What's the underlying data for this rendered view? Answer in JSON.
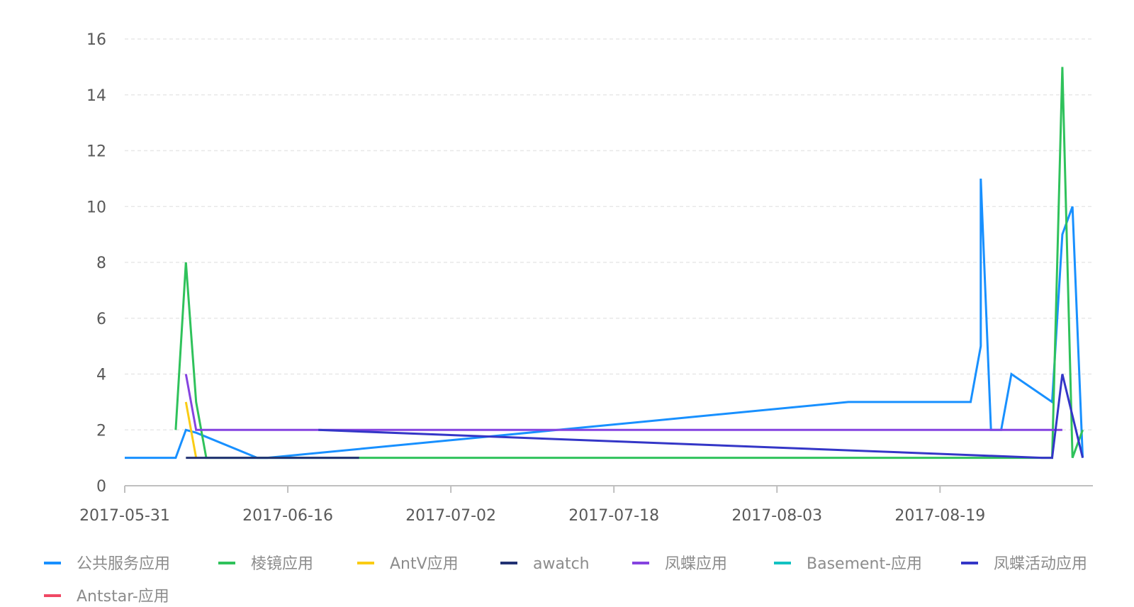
{
  "chart_data": {
    "type": "line",
    "title": "",
    "xlabel": "",
    "ylabel": "",
    "ylim": [
      0,
      16
    ],
    "xlim": [
      "2017-05-31",
      "2017-09-03"
    ],
    "y_ticks": [
      "0",
      "2",
      "4",
      "6",
      "8",
      "10",
      "12",
      "14",
      "16"
    ],
    "x_ticks": [
      "2017-05-31",
      "2017-06-16",
      "2017-07-02",
      "2017-07-18",
      "2017-08-03",
      "2017-08-19"
    ],
    "grid": "horizontal dashed",
    "legend_position": "bottom",
    "series": [
      {
        "name": "公共服务应用",
        "color": "#1890ff",
        "points": [
          [
            "2017-05-31",
            1
          ],
          [
            "2017-06-01",
            1
          ],
          [
            "2017-06-02",
            1
          ],
          [
            "2017-06-03",
            1
          ],
          [
            "2017-06-04",
            1
          ],
          [
            "2017-06-05",
            1
          ],
          [
            "2017-06-06",
            2
          ],
          [
            "2017-06-07",
            1.9
          ],
          [
            "2017-06-13",
            1
          ],
          [
            "2017-06-14",
            1
          ],
          [
            "2017-08-10",
            3
          ],
          [
            "2017-08-22",
            3
          ],
          [
            "2017-08-23",
            5
          ],
          [
            "2017-08-23",
            11
          ],
          [
            "2017-08-24",
            2
          ],
          [
            "2017-08-25",
            2
          ],
          [
            "2017-08-26",
            4
          ],
          [
            "2017-08-30",
            3
          ],
          [
            "2017-08-31",
            9
          ],
          [
            "2017-09-01",
            10
          ],
          [
            "2017-09-02",
            1
          ]
        ]
      },
      {
        "name": "棱镜应用",
        "color": "#2fc25b",
        "points": [
          [
            "2017-06-05",
            2
          ],
          [
            "2017-06-06",
            8
          ],
          [
            "2017-06-07",
            3
          ],
          [
            "2017-06-08",
            1
          ],
          [
            "2017-06-23",
            1
          ],
          [
            "2017-08-30",
            1
          ],
          [
            "2017-08-31",
            15
          ],
          [
            "2017-09-01",
            1
          ],
          [
            "2017-09-02",
            2
          ]
        ]
      },
      {
        "name": "AntV应用",
        "color": "#facc14",
        "points": [
          [
            "2017-06-06",
            3
          ],
          [
            "2017-06-07",
            1
          ]
        ]
      },
      {
        "name": "awatch",
        "color": "#223273",
        "points": [
          [
            "2017-06-06",
            1
          ],
          [
            "2017-06-23",
            1
          ]
        ]
      },
      {
        "name": "凤蝶应用",
        "color": "#8543e0",
        "points": [
          [
            "2017-06-06",
            4
          ],
          [
            "2017-06-07",
            2
          ],
          [
            "2017-08-31",
            2
          ]
        ]
      },
      {
        "name": "Basement-应用",
        "color": "#13c2c2",
        "points": []
      },
      {
        "name": "凤蝶活动应用",
        "color": "#3436c7",
        "points": [
          [
            "2017-06-19",
            2
          ],
          [
            "2017-08-29",
            1
          ],
          [
            "2017-08-30",
            1
          ],
          [
            "2017-08-31",
            4
          ],
          [
            "2017-09-02",
            1
          ]
        ]
      },
      {
        "name": "Antstar-应用",
        "color": "#f04864",
        "points": []
      }
    ]
  }
}
